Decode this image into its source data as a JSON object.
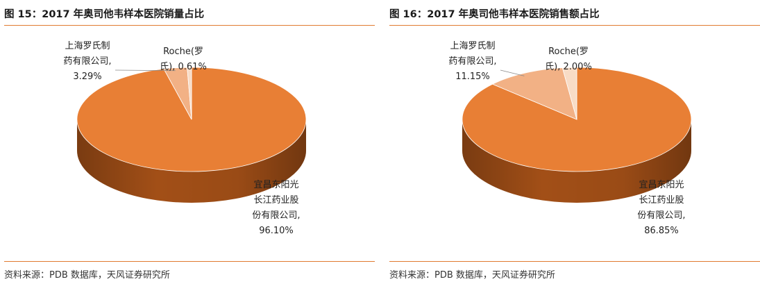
{
  "charts": [
    {
      "figure_title": "图 15：2017 年奥司他韦样本医院销量占比",
      "source": "资料来源：PDB 数据库，天风证券研究所"
    },
    {
      "figure_title": "图 16：2017 年奥司他韦样本医院销售额占比",
      "source": "资料来源：PDB 数据库，天风证券研究所"
    }
  ],
  "colors": {
    "accent_rule": "#E07A2F",
    "main_slice": "#E87F35",
    "main_side": "#A24F17",
    "shanghai_roche_slice": "#F2B185",
    "roche_slice": "#F8DCC6"
  },
  "chart_data": [
    {
      "type": "pie",
      "style": "3d",
      "title": "图 15：2017 年奥司他韦样本医院销量占比",
      "slices": [
        {
          "label_lines": [
            "宜昌东阳光",
            "长江药业股",
            "份有限公司,",
            "96.10%"
          ],
          "value": 96.1
        },
        {
          "label_lines": [
            "上海罗氏制",
            "药有限公司,",
            "3.29%"
          ],
          "value": 3.29
        },
        {
          "label_lines": [
            "Roche(罗",
            "氏), 0.61%"
          ],
          "value": 0.61
        }
      ]
    },
    {
      "type": "pie",
      "style": "3d",
      "title": "图 16：2017 年奥司他韦样本医院销售额占比",
      "slices": [
        {
          "label_lines": [
            "宜昌东阳光",
            "长江药业股",
            "份有限公司,",
            "86.85%"
          ],
          "value": 86.85
        },
        {
          "label_lines": [
            "上海罗氏制",
            "药有限公司,",
            "11.15%"
          ],
          "value": 11.15
        },
        {
          "label_lines": [
            "Roche(罗",
            "氏), 2.00%"
          ],
          "value": 2.0
        }
      ]
    }
  ]
}
